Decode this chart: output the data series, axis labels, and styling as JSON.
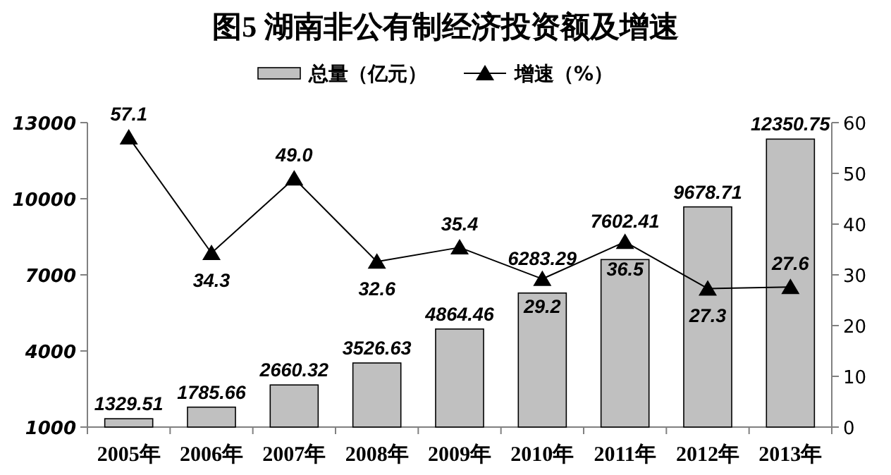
{
  "chart_data": {
    "type": "bar",
    "title": "图5  湖南非公有制经济投资额及增速",
    "categories": [
      "2005年",
      "2006年",
      "2007年",
      "2008年",
      "2009年",
      "2010年",
      "2011年",
      "2012年",
      "2013年"
    ],
    "series": [
      {
        "name": "总量（亿元）",
        "color": "#c0c0c0",
        "values": [
          1329.51,
          1785.66,
          2660.32,
          3526.63,
          4864.46,
          6283.29,
          7602.41,
          9678.71,
          12350.75
        ],
        "value_labels": [
          "1329.51",
          "1785.66",
          "2660.32",
          "3526.63",
          "4864.46",
          "6283.29",
          "7602.41",
          "9678.71",
          "12350.75"
        ]
      },
      {
        "name": "增速（%）",
        "type": "line",
        "axis": "y2",
        "color": "#000000",
        "marker": "triangle",
        "values": [
          57.1,
          34.3,
          49.0,
          32.6,
          35.4,
          29.2,
          36.5,
          27.3,
          27.6
        ],
        "value_labels": [
          "57.1",
          "34.3",
          "49.0",
          "32.6",
          "35.4",
          "29.2",
          "36.5",
          "27.3",
          "27.6"
        ]
      }
    ],
    "ylim": [
      1000,
      13000
    ],
    "yticks": [
      1000,
      4000,
      7000,
      10000,
      13000
    ],
    "y2lim": [
      0,
      60
    ],
    "y2ticks": [
      0,
      10,
      20,
      30,
      40,
      50,
      60
    ],
    "legend": "top",
    "grid": false
  }
}
